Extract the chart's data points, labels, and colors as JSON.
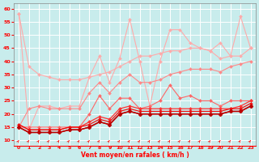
{
  "xlabel": "Vent moyen/en rafales ( km/h )",
  "ylim": [
    8,
    62
  ],
  "xlim": [
    -0.5,
    23.5
  ],
  "yticks": [
    10,
    15,
    20,
    25,
    30,
    35,
    40,
    45,
    50,
    55,
    60
  ],
  "xticks": [
    0,
    1,
    2,
    3,
    4,
    5,
    6,
    7,
    8,
    9,
    10,
    11,
    12,
    13,
    14,
    15,
    16,
    17,
    18,
    19,
    20,
    21,
    22,
    23
  ],
  "bg_color": "#c8ecec",
  "grid_color": "#aadddd",
  "series": [
    {
      "color": "#ffaaaa",
      "linewidth": 0.8,
      "marker": "D",
      "markersize": 2.0,
      "y": [
        58,
        38,
        35,
        34,
        33,
        33,
        33,
        34,
        35,
        36,
        38,
        40,
        42,
        42,
        43,
        44,
        44,
        45,
        45,
        44,
        41,
        42,
        42,
        45
      ]
    },
    {
      "color": "#ffaaaa",
      "linewidth": 0.8,
      "marker": "D",
      "markersize": 2.0,
      "y": [
        58,
        14,
        23,
        23,
        22,
        23,
        23,
        34,
        42,
        32,
        41,
        56,
        40,
        23,
        40,
        52,
        52,
        47,
        45,
        44,
        47,
        42,
        57,
        45
      ]
    },
    {
      "color": "#ff8888",
      "linewidth": 0.8,
      "marker": "D",
      "markersize": 2.0,
      "y": [
        15,
        22,
        23,
        22,
        22,
        22,
        22,
        28,
        32,
        28,
        32,
        35,
        32,
        32,
        33,
        35,
        36,
        37,
        37,
        37,
        36,
        38,
        39,
        40
      ]
    },
    {
      "color": "#ff6666",
      "linewidth": 0.8,
      "marker": "D",
      "markersize": 2.0,
      "y": [
        15,
        15,
        15,
        15,
        15,
        15,
        15,
        20,
        27,
        22,
        26,
        26,
        22,
        23,
        25,
        31,
        26,
        27,
        25,
        25,
        23,
        25,
        25,
        25
      ]
    },
    {
      "color": "#ff3333",
      "linewidth": 0.9,
      "marker": "D",
      "markersize": 2.0,
      "y": [
        16,
        14,
        14,
        14,
        14,
        15,
        15,
        17,
        19,
        18,
        22,
        23,
        22,
        22,
        22,
        22,
        22,
        22,
        22,
        22,
        22,
        22,
        23,
        25
      ]
    },
    {
      "color": "#ee1111",
      "linewidth": 0.9,
      "marker": "D",
      "markersize": 2.0,
      "y": [
        16,
        14,
        14,
        14,
        14,
        15,
        15,
        16,
        18,
        17,
        21,
        22,
        21,
        21,
        21,
        21,
        21,
        21,
        21,
        21,
        21,
        22,
        22,
        24
      ]
    },
    {
      "color": "#cc0000",
      "linewidth": 1.0,
      "marker": "D",
      "markersize": 2.5,
      "y": [
        15,
        13,
        13,
        13,
        13,
        14,
        14,
        15,
        17,
        16,
        20,
        21,
        20,
        20,
        20,
        20,
        20,
        20,
        20,
        20,
        20,
        21,
        21,
        23
      ]
    },
    {
      "color": "#bb0000",
      "linewidth": 1.0,
      "marker": "D",
      "markersize": 2.5,
      "y": [
        15,
        13,
        13,
        13,
        13,
        14,
        14,
        15,
        17,
        16,
        20,
        21,
        20,
        20,
        20,
        20,
        20,
        20,
        20,
        20,
        20,
        21,
        21,
        23
      ]
    }
  ]
}
